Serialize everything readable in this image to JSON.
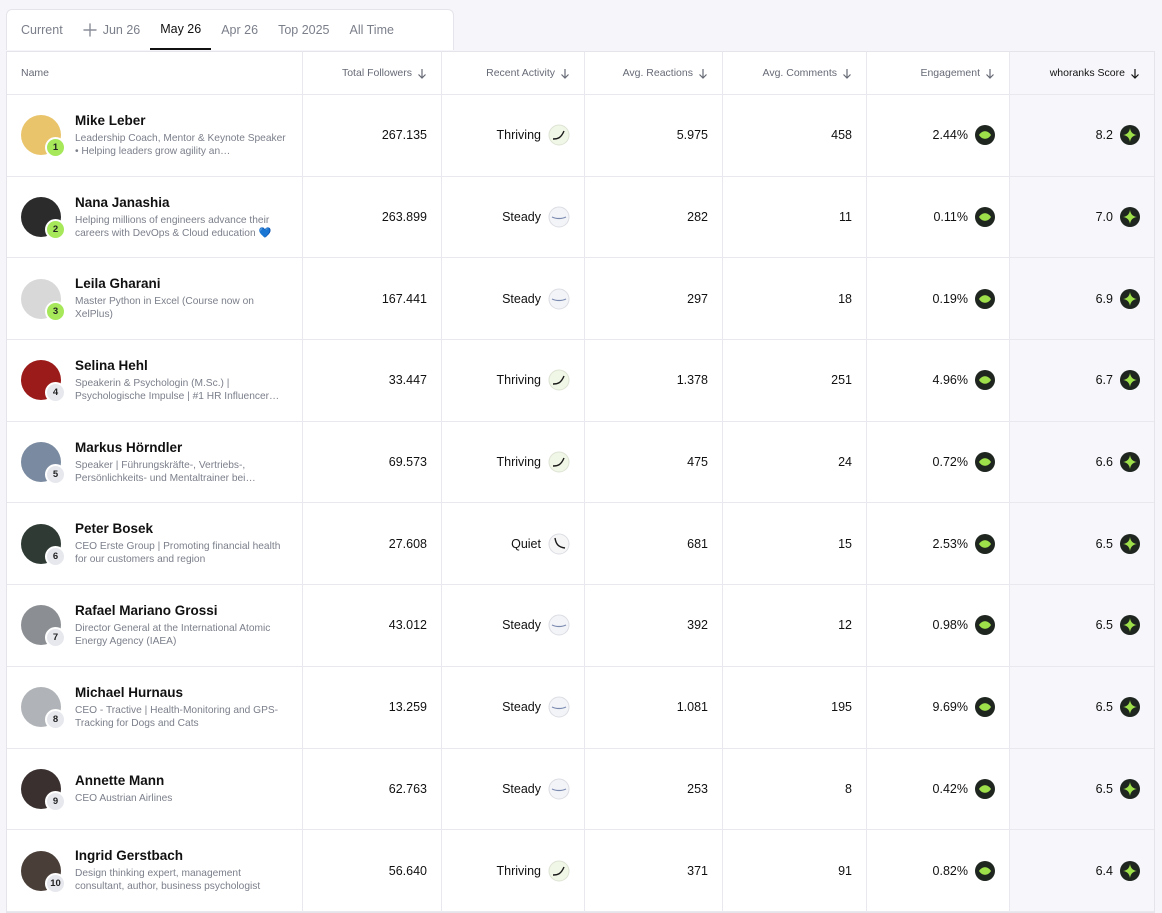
{
  "tabs": {
    "items": [
      "Current",
      "Jun 26",
      "May 26",
      "Apr 26",
      "Top 2025",
      "All Time"
    ],
    "active": 2
  },
  "table": {
    "headers": [
      "Name",
      "Total Followers",
      "Recent Activity",
      "Avg. Reactions",
      "Avg. Comments",
      "Engagement",
      "whoranks Score"
    ],
    "rows": [
      {
        "rank": "1",
        "name": "Mike Leber",
        "bio": "Leadership Coach, Mentor & Keynote Speaker • Helping leaders grow agility an…",
        "followers": "267.135",
        "activity": "Thriving",
        "reactions": "5.975",
        "comments": "458",
        "engagement": "2.44%",
        "score": "8.2"
      },
      {
        "rank": "2",
        "name": "Nana Janashia",
        "bio": "Helping millions of engineers advance their careers with DevOps & Cloud education 💙",
        "followers": "263.899",
        "activity": "Steady",
        "reactions": "282",
        "comments": "11",
        "engagement": "0.11%",
        "score": "7.0"
      },
      {
        "rank": "3",
        "name": "Leila Gharani",
        "bio": "Master Python in Excel (Course now on XelPlus)",
        "followers": "167.441",
        "activity": "Steady",
        "reactions": "297",
        "comments": "18",
        "engagement": "0.19%",
        "score": "6.9"
      },
      {
        "rank": "4",
        "name": "Selina Hehl",
        "bio": "Speakerin & Psychologin (M.Sc.) | Psychologische Impulse | #1 HR Influencer…",
        "followers": "33.447",
        "activity": "Thriving",
        "reactions": "1.378",
        "comments": "251",
        "engagement": "4.96%",
        "score": "6.7"
      },
      {
        "rank": "5",
        "name": "Markus Hörndler",
        "bio": "Speaker | Führungskräfte-, Vertriebs-, Persönlichkeits- und Mentaltrainer bei…",
        "followers": "69.573",
        "activity": "Thriving",
        "reactions": "475",
        "comments": "24",
        "engagement": "0.72%",
        "score": "6.6"
      },
      {
        "rank": "6",
        "name": "Peter Bosek",
        "bio": "CEO Erste Group | Promoting financial health for our customers and region",
        "followers": "27.608",
        "activity": "Quiet",
        "reactions": "681",
        "comments": "15",
        "engagement": "2.53%",
        "score": "6.5"
      },
      {
        "rank": "7",
        "name": "Rafael Mariano Grossi",
        "bio": "Director General at the International Atomic Energy Agency (IAEA)",
        "followers": "43.012",
        "activity": "Steady",
        "reactions": "392",
        "comments": "12",
        "engagement": "0.98%",
        "score": "6.5"
      },
      {
        "rank": "8",
        "name": "Michael Hurnaus",
        "bio": "CEO - Tractive | Health-Monitoring and GPS-Tracking for Dogs and Cats",
        "followers": "13.259",
        "activity": "Steady",
        "reactions": "1.081",
        "comments": "195",
        "engagement": "9.69%",
        "score": "6.5"
      },
      {
        "rank": "9",
        "name": "Annette Mann",
        "bio": "CEO Austrian Airlines",
        "followers": "62.763",
        "activity": "Steady",
        "reactions": "253",
        "comments": "8",
        "engagement": "0.42%",
        "score": "6.5"
      },
      {
        "rank": "10",
        "name": "Ingrid Gerstbach",
        "bio": "Design thinking expert, management consultant, author, business psychologist",
        "followers": "56.640",
        "activity": "Thriving",
        "reactions": "371",
        "comments": "91",
        "engagement": "0.82%",
        "score": "6.4"
      }
    ]
  }
}
